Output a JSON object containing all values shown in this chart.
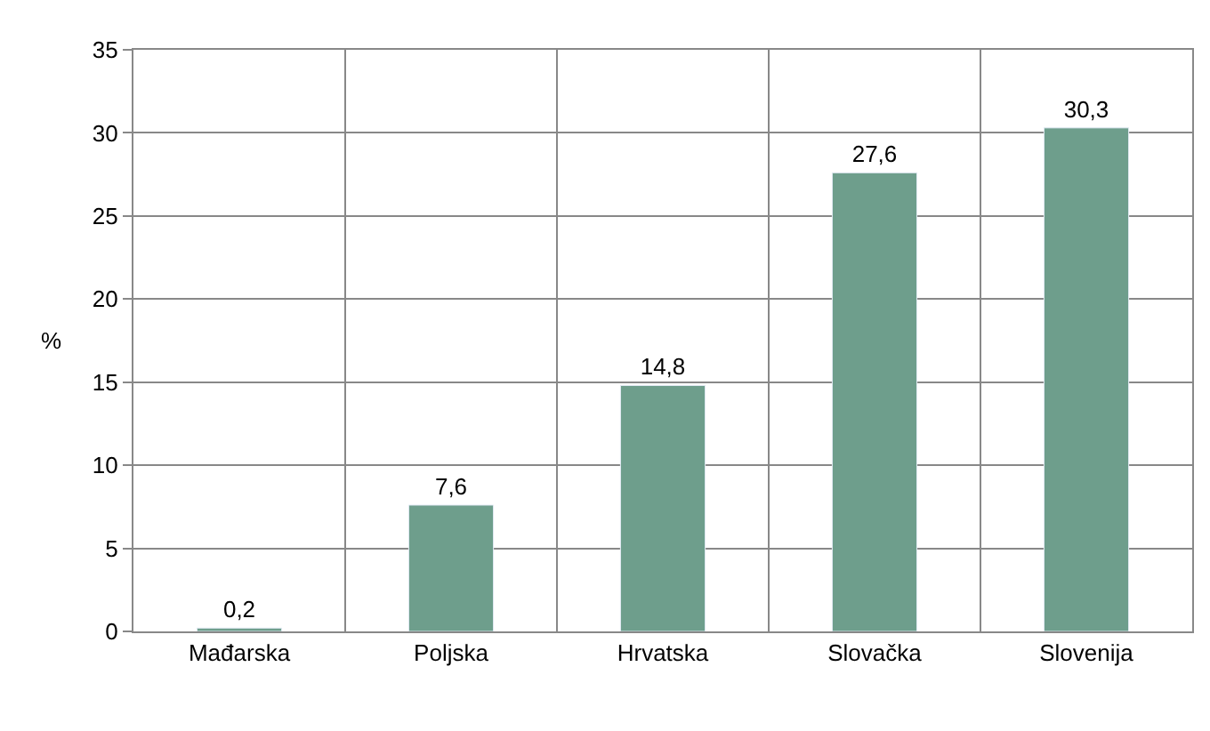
{
  "chart_data": {
    "type": "bar",
    "ylabel": "%",
    "categories": [
      "Mađarska",
      "Poljska",
      "Hrvatska",
      "Slovačka",
      "Slovenija"
    ],
    "values": [
      0.2,
      7.6,
      14.8,
      27.6,
      30.3
    ],
    "value_labels": [
      "0,2",
      "7,6",
      "14,8",
      "27,6",
      "30,3"
    ],
    "color": "#6e9e8c",
    "ylim": [
      0,
      35
    ],
    "yticks": [
      0,
      5,
      10,
      15,
      20,
      25,
      30,
      35
    ],
    "grid": true
  }
}
